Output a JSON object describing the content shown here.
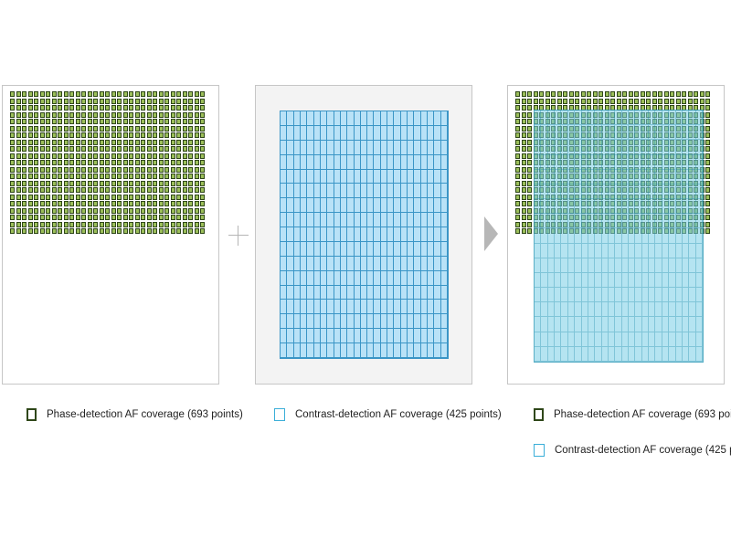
{
  "phase_panel": {
    "columns": 33,
    "rows": 21
  },
  "contrast_panel": {
    "columns": 25,
    "rows": 17
  },
  "legends": {
    "phase": "Phase-detection AF coverage (693 points)",
    "contrast": "Contrast-detection  AF coverage (425 points)"
  },
  "colors": {
    "phase_point_fill": "#9cbf5a",
    "phase_point_border": "#2f4719",
    "contrast_fill": "#b9e2f7",
    "contrast_line": "#3a95c6",
    "combined_overlay": "#78cde6"
  },
  "icons": {
    "combine": "plus-icon",
    "result": "arrow-right-icon"
  }
}
